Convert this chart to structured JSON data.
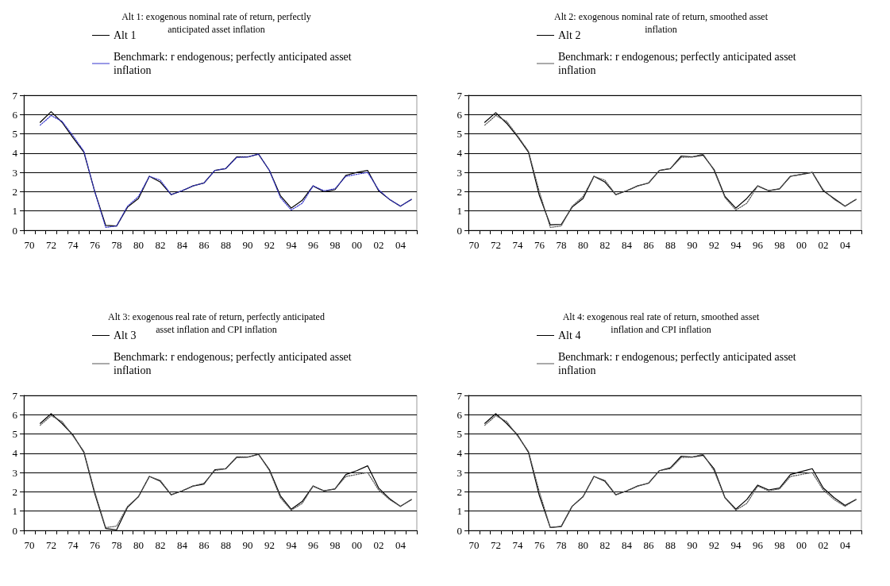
{
  "chart_data": [
    {
      "type": "line",
      "title": "Alt 1: exogenous nominal rate of return, perfectly\nanticipated asset inflation",
      "categories": [
        "70",
        null,
        "72",
        null,
        "74",
        null,
        "76",
        null,
        "78",
        null,
        "80",
        null,
        "82",
        null,
        "84",
        null,
        "86",
        null,
        "88",
        null,
        "90",
        null,
        "92",
        null,
        "94",
        null,
        "96",
        null,
        "98",
        null,
        "00",
        null,
        "02",
        null,
        "04",
        null
      ],
      "series": [
        {
          "name": "Alt 1",
          "color": "#000000",
          "line_style": "solid",
          "values": [
            null,
            5.6,
            6.15,
            5.6,
            4.8,
            4.05,
            2.0,
            0.25,
            0.22,
            1.2,
            1.65,
            2.8,
            2.5,
            1.85,
            2.05,
            2.3,
            2.45,
            3.1,
            3.2,
            3.8,
            3.8,
            3.95,
            3.1,
            1.8,
            1.15,
            1.55,
            2.3,
            2.0,
            2.1,
            2.85,
            3.0,
            3.1,
            2.05,
            1.6,
            1.25,
            1.6
          ]
        },
        {
          "name": "Benchmark: r endogenous; perfectly anticipated asset inflation",
          "color": "#3333cc",
          "line_style": "dotted",
          "values": [
            null,
            5.45,
            5.95,
            5.65,
            4.9,
            4.1,
            2.0,
            0.15,
            0.22,
            1.25,
            1.75,
            2.8,
            2.6,
            1.85,
            2.05,
            2.3,
            2.45,
            3.1,
            3.2,
            3.78,
            3.8,
            3.95,
            3.1,
            1.7,
            1.05,
            1.4,
            2.3,
            2.05,
            2.15,
            2.8,
            2.9,
            3.0,
            2.1,
            1.6,
            1.25,
            1.6
          ]
        }
      ],
      "ylim": [
        0,
        7
      ],
      "yticks": [
        0,
        1,
        2,
        3,
        4,
        5,
        6,
        7
      ],
      "grid": "y",
      "legend": "top",
      "marker": "none"
    },
    {
      "type": "line",
      "title": "Alt 2: exogenous nominal rate of return, smoothed asset\ninflation",
      "categories": [
        "70",
        null,
        "72",
        null,
        "74",
        null,
        "76",
        null,
        "78",
        null,
        "80",
        null,
        "82",
        null,
        "84",
        null,
        "86",
        null,
        "88",
        null,
        "90",
        null,
        "92",
        null,
        "94",
        null,
        "96",
        null,
        "98",
        null,
        "00",
        null,
        "02",
        null,
        "04",
        null
      ],
      "series": [
        {
          "name": "Alt 2",
          "color": "#000000",
          "line_style": "solid",
          "values": [
            null,
            5.6,
            6.1,
            5.55,
            4.85,
            4.05,
            1.8,
            0.28,
            0.3,
            1.2,
            1.65,
            2.8,
            2.5,
            1.85,
            2.05,
            2.3,
            2.45,
            3.1,
            3.2,
            3.85,
            3.8,
            3.9,
            3.15,
            1.75,
            1.15,
            1.65,
            2.3,
            2.05,
            2.15,
            2.8,
            2.9,
            3.0,
            2.05,
            1.65,
            1.25,
            1.6
          ]
        },
        {
          "name": "Benchmark: r endogenous; perfectly anticipated asset inflation",
          "color": "#555555",
          "line_style": "dotted",
          "values": [
            null,
            5.45,
            5.95,
            5.65,
            4.9,
            4.1,
            2.0,
            0.15,
            0.22,
            1.25,
            1.75,
            2.8,
            2.6,
            1.85,
            2.05,
            2.3,
            2.45,
            3.1,
            3.2,
            3.78,
            3.8,
            3.95,
            3.1,
            1.7,
            1.05,
            1.4,
            2.3,
            2.05,
            2.15,
            2.8,
            2.9,
            3.0,
            2.1,
            1.6,
            1.25,
            1.6
          ]
        }
      ],
      "ylim": [
        0,
        7
      ],
      "yticks": [
        0,
        1,
        2,
        3,
        4,
        5,
        6,
        7
      ],
      "grid": "y",
      "legend": "top",
      "marker": "none"
    },
    {
      "type": "line",
      "title": "Alt 3: exogenous real rate of return, perfectly anticipated\nasset inflation and CPI inflation",
      "categories": [
        "70",
        null,
        "72",
        null,
        "74",
        null,
        "76",
        null,
        "78",
        null,
        "80",
        null,
        "82",
        null,
        "84",
        null,
        "86",
        null,
        "88",
        null,
        "90",
        null,
        "92",
        null,
        "94",
        null,
        "96",
        null,
        "98",
        null,
        "00",
        null,
        "02",
        null,
        "04",
        null
      ],
      "series": [
        {
          "name": "Alt 3",
          "color": "#000000",
          "line_style": "solid",
          "values": [
            null,
            5.55,
            6.05,
            5.55,
            4.95,
            4.05,
            1.9,
            0.1,
            0.03,
            1.2,
            1.75,
            2.8,
            2.55,
            1.85,
            2.05,
            2.3,
            2.4,
            3.15,
            3.2,
            3.8,
            3.8,
            3.95,
            3.15,
            1.8,
            1.1,
            1.5,
            2.3,
            2.05,
            2.15,
            2.9,
            3.1,
            3.35,
            2.2,
            1.65,
            1.25,
            1.6
          ]
        },
        {
          "name": "Benchmark: r endogenous; perfectly anticipated asset inflation",
          "color": "#555555",
          "line_style": "dotted",
          "values": [
            null,
            5.45,
            5.95,
            5.65,
            4.9,
            4.1,
            2.0,
            0.15,
            0.22,
            1.25,
            1.75,
            2.8,
            2.6,
            1.85,
            2.05,
            2.3,
            2.45,
            3.1,
            3.2,
            3.78,
            3.8,
            3.95,
            3.1,
            1.7,
            1.05,
            1.4,
            2.3,
            2.05,
            2.15,
            2.8,
            2.9,
            3.0,
            2.1,
            1.6,
            1.25,
            1.6
          ]
        }
      ],
      "ylim": [
        0,
        7
      ],
      "yticks": [
        0,
        1,
        2,
        3,
        4,
        5,
        6,
        7
      ],
      "grid": "y",
      "legend": "top",
      "marker": "none"
    },
    {
      "type": "line",
      "title": "Alt 4: exogenous real rate of return, smoothed asset\ninflation and CPI inflation",
      "categories": [
        "70",
        null,
        "72",
        null,
        "74",
        null,
        "76",
        null,
        "78",
        null,
        "80",
        null,
        "82",
        null,
        "84",
        null,
        "86",
        null,
        "88",
        null,
        "90",
        null,
        "92",
        null,
        "94",
        null,
        "96",
        null,
        "98",
        null,
        "00",
        null,
        "02",
        null,
        "04",
        null
      ],
      "series": [
        {
          "name": "Alt 4",
          "color": "#000000",
          "line_style": "solid",
          "values": [
            null,
            5.55,
            6.05,
            5.55,
            4.95,
            4.05,
            1.8,
            0.15,
            0.2,
            1.25,
            1.75,
            2.8,
            2.55,
            1.85,
            2.05,
            2.3,
            2.45,
            3.1,
            3.25,
            3.85,
            3.8,
            3.9,
            3.2,
            1.7,
            1.1,
            1.6,
            2.35,
            2.1,
            2.2,
            2.9,
            3.05,
            3.2,
            2.2,
            1.7,
            1.3,
            1.6
          ]
        },
        {
          "name": "Benchmark: r endogenous; perfectly anticipated asset inflation",
          "color": "#555555",
          "line_style": "dotted",
          "values": [
            null,
            5.45,
            5.95,
            5.65,
            4.9,
            4.1,
            2.0,
            0.15,
            0.22,
            1.25,
            1.75,
            2.8,
            2.6,
            1.85,
            2.05,
            2.3,
            2.45,
            3.1,
            3.2,
            3.78,
            3.8,
            3.95,
            3.1,
            1.7,
            1.05,
            1.4,
            2.3,
            2.05,
            2.15,
            2.8,
            2.9,
            3.0,
            2.1,
            1.6,
            1.25,
            1.6
          ]
        }
      ],
      "ylim": [
        0,
        7
      ],
      "yticks": [
        0,
        1,
        2,
        3,
        4,
        5,
        6,
        7
      ],
      "grid": "y",
      "legend": "top",
      "marker": "none"
    }
  ]
}
